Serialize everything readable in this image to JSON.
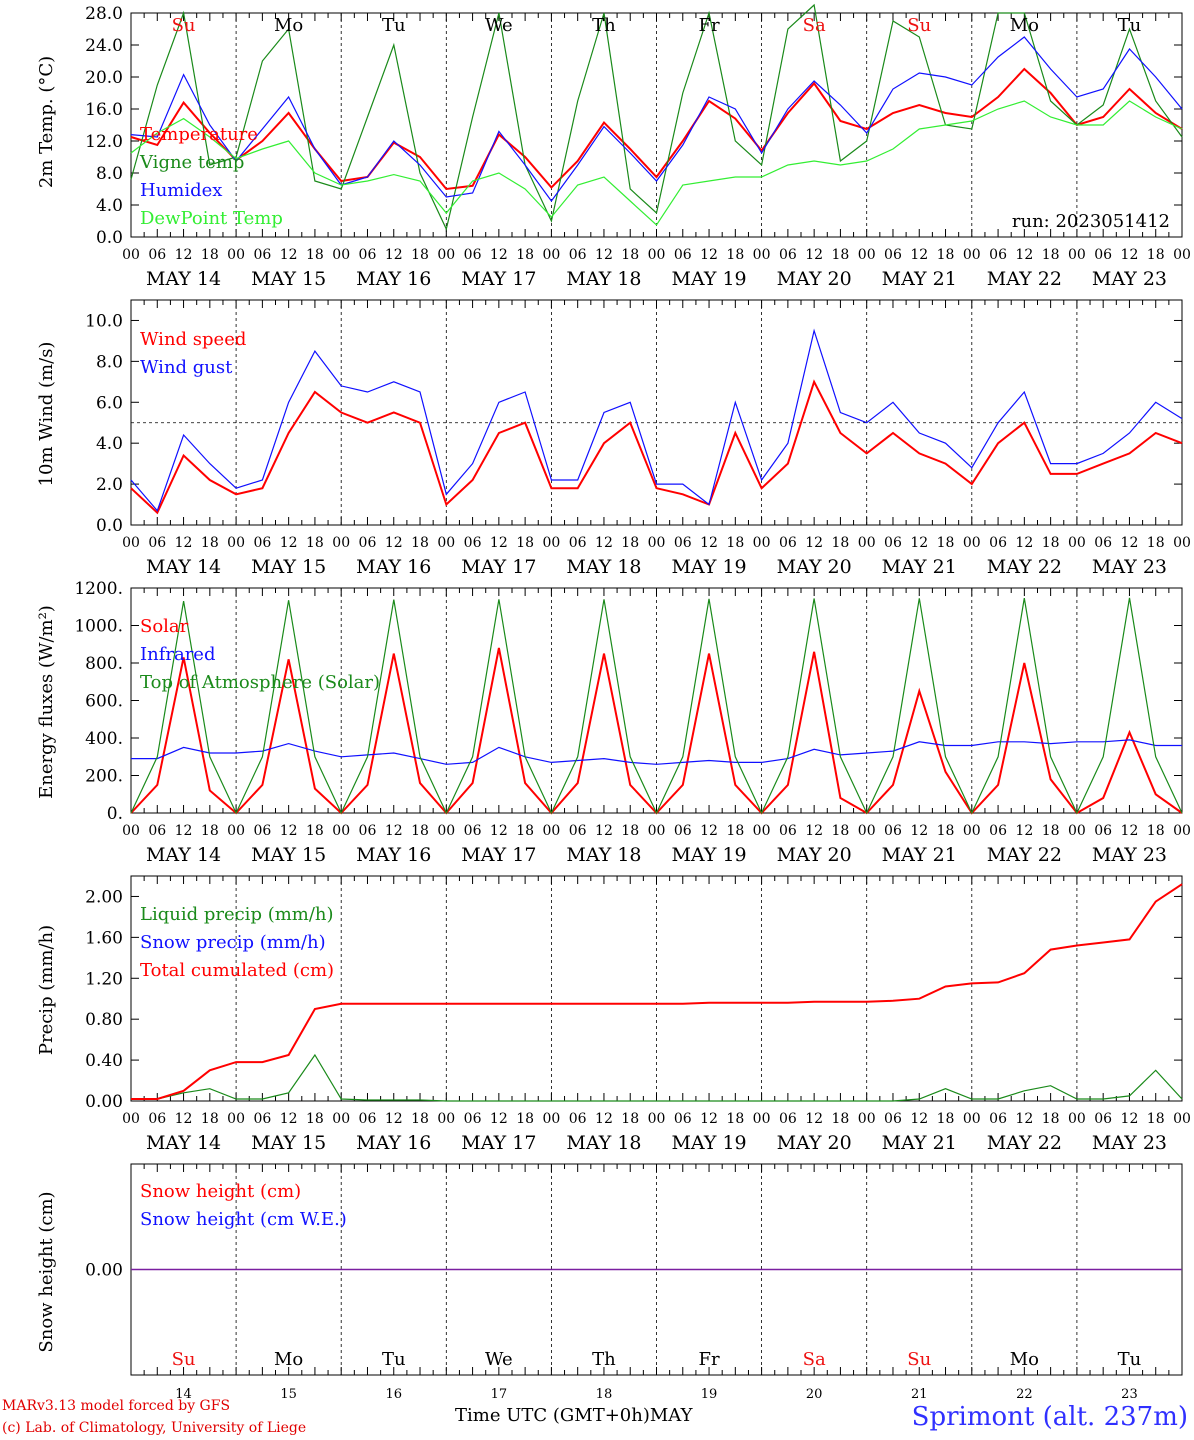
{
  "colors": {
    "red": "#ff0000",
    "green": "#1a8a1a",
    "blue": "#1010ff",
    "lightgreen": "#33ee33",
    "purple": "#7a1fa0",
    "weekend": "#ee1111"
  },
  "x_axis": {
    "hour_ticks": [
      "00",
      "06",
      "12",
      "18"
    ],
    "days": [
      "MAY 14",
      "MAY 15",
      "MAY 16",
      "MAY 17",
      "MAY 18",
      "MAY 19",
      "MAY 20",
      "MAY 21",
      "MAY 22",
      "MAY 23"
    ],
    "weekdays": [
      "Su",
      "Mo",
      "Tu",
      "We",
      "Th",
      "Fr",
      "Sa",
      "Su",
      "Mo",
      "Tu"
    ],
    "weekend_flags": [
      true,
      false,
      false,
      false,
      false,
      false,
      true,
      true,
      false,
      false
    ],
    "day_numbers": [
      "14",
      "15",
      "16",
      "17",
      "18",
      "19",
      "20",
      "21",
      "22",
      "23"
    ],
    "title": "Time UTC (GMT+0h)",
    "month": "MAY"
  },
  "footer": {
    "credit_line1": "MARv3.13 model forced by GFS",
    "credit_line2": "(c) Lab. of Climatology, University of Liege",
    "station": "Sprimont (alt. 237m)"
  },
  "chart_data": [
    {
      "type": "line",
      "ylabel": "2m Temp. (°C)",
      "ylim": [
        0,
        28
      ],
      "yticks": [
        "0.0",
        "4.0",
        "8.0",
        "12.0",
        "16.0",
        "20.0",
        "24.0",
        "28.0"
      ],
      "annotation": "run: 2023051412",
      "grid": "vertical dashed lines at day boundaries",
      "x": [
        0,
        6,
        12,
        18,
        24,
        30,
        36,
        42,
        48,
        54,
        60,
        66,
        72,
        78,
        84,
        90,
        96,
        102,
        108,
        114,
        120,
        126,
        132,
        138,
        144,
        150,
        156,
        162,
        168,
        174,
        180,
        186,
        192,
        198,
        204,
        210,
        216,
        222,
        228,
        234,
        240
      ],
      "series": [
        {
          "name": "Temperature",
          "color": "red",
          "values": [
            12.5,
            11.5,
            16.8,
            13.0,
            9.6,
            12.0,
            15.5,
            11.0,
            7.0,
            7.5,
            11.8,
            10.0,
            6.0,
            6.4,
            12.8,
            10.0,
            6.2,
            9.5,
            14.3,
            11.0,
            7.5,
            12.0,
            17.0,
            14.8,
            10.8,
            15.5,
            19.2,
            14.5,
            13.5,
            15.5,
            16.5,
            15.5,
            15.0,
            17.5,
            21.0,
            18.0,
            14.0,
            15.0,
            18.5,
            15.5,
            13.5
          ]
        },
        {
          "name": "Vigne temp",
          "color": "green",
          "values": [
            7.2,
            19.0,
            28.0,
            9.0,
            10.0,
            22.0,
            26.0,
            7.0,
            6.0,
            15.0,
            24.0,
            8.0,
            1.0,
            15.0,
            28.0,
            9.0,
            2.0,
            17.0,
            28.0,
            6.0,
            3.0,
            18.0,
            28.0,
            12.0,
            9.0,
            26.0,
            29.0,
            9.5,
            12.0,
            27.0,
            25.0,
            14.0,
            13.5,
            28.0,
            28.0,
            17.0,
            14.0,
            16.5,
            26.0,
            17.0,
            12.5
          ]
        },
        {
          "name": "Humidex",
          "color": "blue",
          "values": [
            12.8,
            12.5,
            20.3,
            14.0,
            9.5,
            13.5,
            17.5,
            11.0,
            6.5,
            7.5,
            12.0,
            9.0,
            5.0,
            5.5,
            13.2,
            9.0,
            4.5,
            9.0,
            13.8,
            10.5,
            7.0,
            11.5,
            17.5,
            16.0,
            10.5,
            16.0,
            19.5,
            16.5,
            13.0,
            18.5,
            20.5,
            20.0,
            19.0,
            22.5,
            25.0,
            21.0,
            17.5,
            18.5,
            23.5,
            20.0,
            16.0
          ]
        },
        {
          "name": "DewPoint Temp",
          "color": "lightgreen",
          "values": [
            10.5,
            13.0,
            14.8,
            12.5,
            9.8,
            11.0,
            12.0,
            8.0,
            6.5,
            7.0,
            7.8,
            7.0,
            3.0,
            7.0,
            8.0,
            6.0,
            2.5,
            6.5,
            7.5,
            4.5,
            1.5,
            6.5,
            7.0,
            7.5,
            7.5,
            9.0,
            9.5,
            9.0,
            9.5,
            11.0,
            13.5,
            14.0,
            14.5,
            16.0,
            17.0,
            15.0,
            14.0,
            14.0,
            17.0,
            15.0,
            13.5
          ]
        }
      ]
    },
    {
      "type": "line",
      "ylabel": "10m Wind (m/s)",
      "ylim": [
        0,
        11
      ],
      "yticks": [
        "0.0",
        "2.0",
        "4.0",
        "6.0",
        "8.0",
        "10.0"
      ],
      "reference_line": 5.0,
      "grid": "vertical dashed lines at day boundaries; horizontal dashed line at 5.0",
      "x": [
        0,
        6,
        12,
        18,
        24,
        30,
        36,
        42,
        48,
        54,
        60,
        66,
        72,
        78,
        84,
        90,
        96,
        102,
        108,
        114,
        120,
        126,
        132,
        138,
        144,
        150,
        156,
        162,
        168,
        174,
        180,
        186,
        192,
        198,
        204,
        210,
        216,
        222,
        228,
        234,
        240
      ],
      "series": [
        {
          "name": "Wind speed",
          "color": "red",
          "values": [
            1.8,
            0.6,
            3.4,
            2.2,
            1.5,
            1.8,
            4.5,
            6.5,
            5.5,
            5.0,
            5.5,
            5.0,
            1.0,
            2.2,
            4.5,
            5.0,
            1.8,
            1.8,
            4.0,
            5.0,
            1.8,
            1.5,
            1.0,
            4.5,
            1.8,
            3.0,
            7.0,
            4.5,
            3.5,
            4.5,
            3.5,
            3.0,
            2.0,
            4.0,
            5.0,
            2.5,
            2.5,
            3.0,
            3.5,
            4.5,
            4.0
          ]
        },
        {
          "name": "Wind gust",
          "color": "blue",
          "values": [
            2.2,
            0.7,
            4.4,
            3.0,
            1.8,
            2.2,
            6.0,
            8.5,
            6.8,
            6.5,
            7.0,
            6.5,
            1.5,
            3.0,
            6.0,
            6.5,
            2.2,
            2.2,
            5.5,
            6.0,
            2.0,
            2.0,
            1.0,
            6.0,
            2.2,
            4.0,
            9.5,
            5.5,
            5.0,
            6.0,
            4.5,
            4.0,
            2.8,
            5.0,
            6.5,
            3.0,
            3.0,
            3.5,
            4.5,
            6.0,
            5.2
          ]
        }
      ]
    },
    {
      "type": "line",
      "ylabel": "Energy fluxes (W/m²)",
      "ylim": [
        0,
        1200
      ],
      "yticks": [
        "0.",
        "200.",
        "400.",
        "600.",
        "800.",
        "1000.",
        "1200."
      ],
      "grid": "vertical dashed lines at day boundaries",
      "x": [
        0,
        6,
        12,
        18,
        24,
        30,
        36,
        42,
        48,
        54,
        60,
        66,
        72,
        78,
        84,
        90,
        96,
        102,
        108,
        114,
        120,
        126,
        132,
        138,
        144,
        150,
        156,
        162,
        168,
        174,
        180,
        186,
        192,
        198,
        204,
        210,
        216,
        222,
        228,
        234,
        240
      ],
      "series": [
        {
          "name": "Solar",
          "color": "red",
          "values": [
            0,
            150,
            830,
            120,
            0,
            150,
            820,
            130,
            0,
            150,
            850,
            160,
            0,
            160,
            880,
            160,
            0,
            160,
            850,
            150,
            0,
            150,
            850,
            150,
            0,
            150,
            860,
            80,
            0,
            150,
            650,
            220,
            0,
            150,
            800,
            180,
            0,
            80,
            430,
            100,
            0
          ]
        },
        {
          "name": "Infrared",
          "color": "blue",
          "values": [
            290,
            290,
            350,
            320,
            320,
            330,
            370,
            330,
            300,
            310,
            320,
            290,
            260,
            270,
            350,
            300,
            270,
            280,
            290,
            270,
            260,
            270,
            280,
            270,
            270,
            290,
            340,
            310,
            320,
            330,
            380,
            360,
            360,
            380,
            380,
            370,
            380,
            380,
            390,
            360,
            360
          ]
        },
        {
          "name": "Top of Atmosphere (Solar)",
          "color": "green",
          "values": [
            0,
            300,
            1130,
            300,
            0,
            300,
            1135,
            300,
            0,
            300,
            1138,
            300,
            0,
            300,
            1140,
            300,
            0,
            300,
            1140,
            300,
            0,
            300,
            1142,
            300,
            0,
            300,
            1144,
            300,
            0,
            300,
            1145,
            300,
            0,
            300,
            1146,
            300,
            0,
            300,
            1147,
            300,
            0
          ]
        }
      ]
    },
    {
      "type": "line",
      "ylabel": "Precip (mm/h)",
      "ylim": [
        0,
        2.2
      ],
      "yticks": [
        "0.00",
        "0.40",
        "0.80",
        "1.20",
        "1.60",
        "2.00"
      ],
      "grid": "vertical dashed lines at day boundaries",
      "x": [
        0,
        6,
        12,
        18,
        24,
        30,
        36,
        42,
        48,
        54,
        60,
        66,
        72,
        78,
        84,
        90,
        96,
        102,
        108,
        114,
        120,
        126,
        132,
        138,
        144,
        150,
        156,
        162,
        168,
        174,
        180,
        186,
        192,
        198,
        204,
        210,
        216,
        222,
        228,
        234,
        240
      ],
      "series": [
        {
          "name": "Liquid precip (mm/h)",
          "color": "green",
          "values": [
            0.02,
            0.02,
            0.08,
            0.12,
            0.02,
            0.02,
            0.08,
            0.45,
            0.02,
            0.01,
            0.01,
            0.01,
            0.0,
            0.0,
            0.0,
            0.0,
            0.0,
            0.0,
            0.0,
            0.0,
            0.0,
            0.0,
            0.0,
            0.0,
            0.0,
            0.0,
            0.0,
            0.0,
            0.0,
            0.0,
            0.02,
            0.12,
            0.02,
            0.02,
            0.1,
            0.15,
            0.02,
            0.02,
            0.05,
            0.3,
            0.02
          ]
        },
        {
          "name": "Snow precip (mm/h)",
          "color": "blue",
          "values": [
            0,
            0,
            0,
            0,
            0,
            0,
            0,
            0,
            0,
            0,
            0,
            0,
            0,
            0,
            0,
            0,
            0,
            0,
            0,
            0,
            0,
            0,
            0,
            0,
            0,
            0,
            0,
            0,
            0,
            0,
            0,
            0,
            0,
            0,
            0,
            0,
            0,
            0,
            0,
            0,
            0
          ]
        },
        {
          "name": "Total cumulated (cm)",
          "color": "red",
          "values": [
            0.02,
            0.02,
            0.1,
            0.3,
            0.38,
            0.38,
            0.45,
            0.9,
            0.95,
            0.95,
            0.95,
            0.95,
            0.95,
            0.95,
            0.95,
            0.95,
            0.95,
            0.95,
            0.95,
            0.95,
            0.95,
            0.95,
            0.96,
            0.96,
            0.96,
            0.96,
            0.97,
            0.97,
            0.97,
            0.98,
            1.0,
            1.12,
            1.15,
            1.16,
            1.25,
            1.48,
            1.52,
            1.55,
            1.58,
            1.95,
            2.12
          ]
        }
      ]
    },
    {
      "type": "line",
      "ylabel": "Snow height (cm)",
      "ylim": [
        -1,
        1
      ],
      "yticks": [
        "0.00"
      ],
      "grid": "vertical dashed lines at day boundaries",
      "x": [
        0,
        240
      ],
      "series": [
        {
          "name": "Snow height (cm)",
          "color": "red",
          "values": [
            0,
            0
          ]
        },
        {
          "name": "Snow height (cm W.E.)",
          "color": "blue",
          "values": [
            0,
            0
          ]
        }
      ]
    }
  ]
}
